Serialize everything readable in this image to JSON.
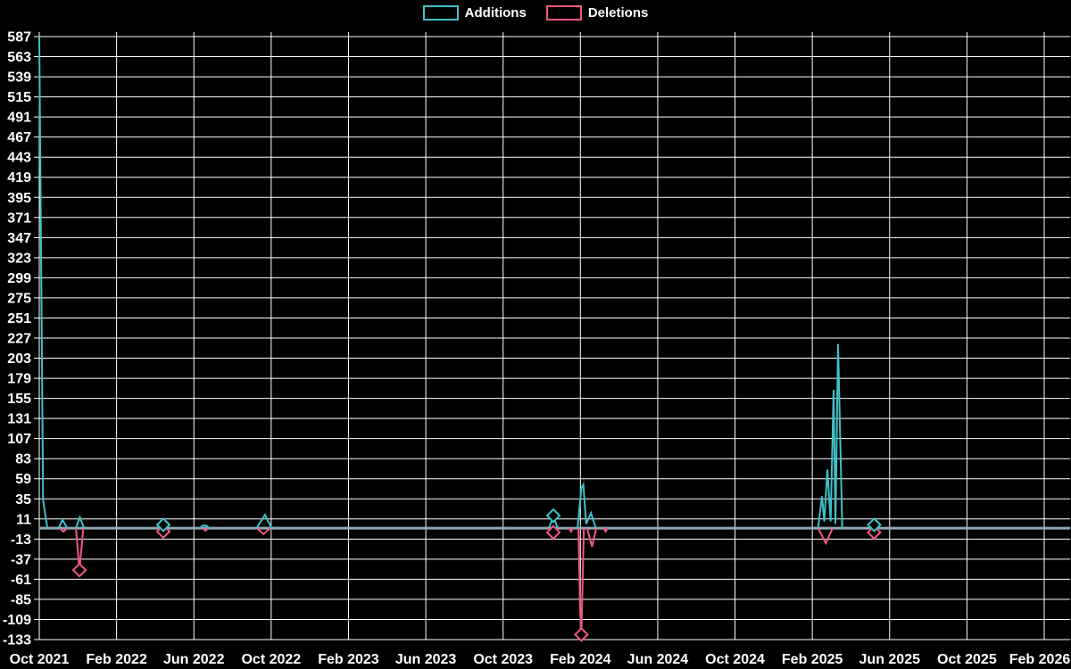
{
  "page": {
    "background": "#000000",
    "text_color": "#ffffff"
  },
  "legend": {
    "position": "top-center",
    "items": [
      {
        "label": "Additions",
        "color": "#3fc1c9"
      },
      {
        "label": "Deletions",
        "color": "#f2597f"
      }
    ]
  },
  "chart_data": {
    "type": "line",
    "title": "",
    "xlabel": "",
    "ylabel": "",
    "grid": true,
    "grid_color": "#ffffff",
    "background": "#000000",
    "tick_text_color": "#ffffff",
    "baseline": {
      "value": 0,
      "color": "#8fa9b6"
    },
    "x_axis": {
      "unit": "months since Oct 2021",
      "span_months": 52,
      "ticks": [
        {
          "label": "Oct 2021",
          "m": 0
        },
        {
          "label": "Feb 2022",
          "m": 4
        },
        {
          "label": "Jun 2022",
          "m": 8
        },
        {
          "label": "Oct 2022",
          "m": 12
        },
        {
          "label": "Feb 2023",
          "m": 16
        },
        {
          "label": "Jun 2023",
          "m": 20
        },
        {
          "label": "Oct 2023",
          "m": 24
        },
        {
          "label": "Feb 2024",
          "m": 28
        },
        {
          "label": "Jun 2024",
          "m": 32
        },
        {
          "label": "Oct 2024",
          "m": 36
        },
        {
          "label": "Feb 2025",
          "m": 40
        },
        {
          "label": "Jun 2025",
          "m": 44
        },
        {
          "label": "Oct 2025",
          "m": 48
        },
        {
          "label": "Feb 2026",
          "m": 52
        }
      ]
    },
    "y_axis": {
      "min": -133,
      "max": 587,
      "tick_step": 24,
      "ticks": [
        587,
        563,
        539,
        515,
        491,
        467,
        443,
        419,
        395,
        371,
        347,
        323,
        299,
        275,
        251,
        227,
        203,
        179,
        155,
        131,
        107,
        83,
        59,
        35,
        11,
        -13,
        -37,
        -61,
        -85,
        -109,
        -133
      ]
    },
    "series": [
      {
        "name": "Additions",
        "color": "#3fc1c9",
        "segments": [
          [
            [
              0,
              587
            ],
            [
              0.2,
              33
            ],
            [
              0.42,
              0
            ]
          ],
          [
            [
              1.0,
              0
            ],
            [
              1.2,
              10
            ],
            [
              1.45,
              0
            ]
          ],
          [
            [
              1.9,
              0
            ],
            [
              2.1,
              13
            ],
            [
              2.32,
              0
            ]
          ],
          [
            [
              6.2,
              0
            ],
            [
              6.42,
              4
            ],
            [
              6.64,
              0
            ]
          ],
          [
            [
              8.3,
              0
            ],
            [
              8.45,
              3
            ],
            [
              8.65,
              3
            ],
            [
              8.8,
              0
            ]
          ],
          [
            [
              11.25,
              0
            ],
            [
              11.68,
              16
            ],
            [
              12.02,
              0
            ]
          ],
          [
            [
              26.38,
              0
            ],
            [
              26.6,
              15
            ],
            [
              26.82,
              0
            ]
          ],
          [
            [
              27.85,
              0
            ],
            [
              28.05,
              48
            ],
            [
              28.15,
              52
            ],
            [
              28.3,
              5
            ],
            [
              28.55,
              18
            ],
            [
              28.8,
              0
            ]
          ],
          [
            [
              40.3,
              0
            ],
            [
              40.5,
              38
            ],
            [
              40.62,
              8
            ],
            [
              40.78,
              70
            ],
            [
              40.95,
              8
            ],
            [
              41.1,
              165
            ],
            [
              41.2,
              5
            ],
            [
              41.33,
              220
            ],
            [
              41.55,
              0
            ]
          ],
          [
            [
              43.0,
              0
            ],
            [
              43.2,
              4
            ],
            [
              43.4,
              0
            ]
          ]
        ],
        "markers": [
          [
            6.42,
            4
          ],
          [
            26.6,
            15
          ],
          [
            43.2,
            4
          ]
        ]
      },
      {
        "name": "Deletions",
        "color": "#f2597f",
        "segments": [
          [
            [
              1.05,
              0
            ],
            [
              1.25,
              -4
            ],
            [
              1.45,
              0
            ]
          ],
          [
            [
              1.9,
              0
            ],
            [
              2.08,
              -50
            ],
            [
              2.28,
              0
            ]
          ],
          [
            [
              6.2,
              0
            ],
            [
              6.42,
              -4
            ],
            [
              6.64,
              0
            ]
          ],
          [
            [
              8.45,
              0
            ],
            [
              8.6,
              -3
            ],
            [
              8.75,
              0
            ]
          ],
          [
            [
              11.25,
              0
            ],
            [
              11.6,
              -7
            ],
            [
              11.95,
              0
            ]
          ],
          [
            [
              26.38,
              0
            ],
            [
              26.6,
              -5
            ],
            [
              26.82,
              0
            ]
          ],
          [
            [
              27.42,
              0
            ],
            [
              27.52,
              -4
            ],
            [
              27.62,
              0
            ]
          ],
          [
            [
              27.9,
              0
            ],
            [
              27.98,
              -93
            ],
            [
              28.05,
              -127
            ],
            [
              28.18,
              0
            ]
          ],
          [
            [
              28.35,
              0
            ],
            [
              28.6,
              -22
            ],
            [
              28.82,
              0
            ]
          ],
          [
            [
              29.2,
              0
            ],
            [
              29.3,
              -4
            ],
            [
              29.4,
              0
            ]
          ],
          [
            [
              40.3,
              0
            ],
            [
              40.7,
              -18
            ],
            [
              41.05,
              0
            ]
          ],
          [
            [
              43.0,
              0
            ],
            [
              43.2,
              -5
            ],
            [
              43.4,
              0
            ]
          ]
        ],
        "markers": [
          [
            2.08,
            -50
          ],
          [
            6.42,
            -4
          ],
          [
            26.6,
            -5
          ],
          [
            28.05,
            -127
          ],
          [
            43.2,
            -5
          ]
        ]
      }
    ]
  }
}
